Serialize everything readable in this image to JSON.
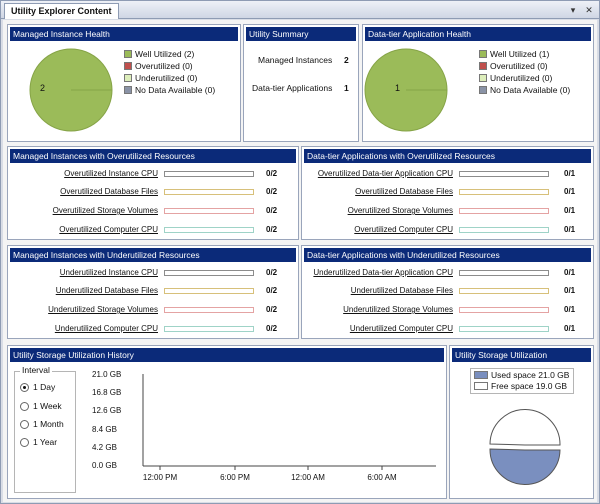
{
  "tab": {
    "title": "Utility Explorer Content",
    "dropdown_icon": "▾",
    "close_icon": "✕"
  },
  "managed_instance_health": {
    "title": "Managed Instance Health",
    "pie_value": "2",
    "legend": [
      {
        "label": "Well Utilized (2)",
        "color": "#9bbb59"
      },
      {
        "label": "Overutilized (0)",
        "color": "#c0504d"
      },
      {
        "label": "Underutilized (0)",
        "color": "#ddeebb"
      },
      {
        "label": "No Data Available (0)",
        "color": "#8a93a6"
      }
    ]
  },
  "utility_summary": {
    "title": "Utility Summary",
    "rows": [
      {
        "label": "Managed Instances",
        "value": "2"
      },
      {
        "label": "Data-tier Applications",
        "value": "1"
      }
    ]
  },
  "dac_health": {
    "title": "Data-tier Application Health",
    "pie_value": "1",
    "legend": [
      {
        "label": "Well Utilized (1)",
        "color": "#9bbb59"
      },
      {
        "label": "Overutilized (0)",
        "color": "#c0504d"
      },
      {
        "label": "Underutilized (0)",
        "color": "#ddeebb"
      },
      {
        "label": "No Data Available (0)",
        "color": "#8a93a6"
      }
    ]
  },
  "mi_over": {
    "title": "Managed Instances with Overutilized Resources",
    "rows": [
      {
        "label": "Overutilized Instance CPU",
        "value": "0/2",
        "color": "#8c8c8c"
      },
      {
        "label": "Overutilized Database Files",
        "value": "0/2",
        "color": "#d7c07a"
      },
      {
        "label": "Overutilized Storage Volumes",
        "value": "0/2",
        "color": "#e4a3a3"
      },
      {
        "label": "Overutilized Computer CPU",
        "value": "0/2",
        "color": "#9fd3c7"
      }
    ]
  },
  "dac_over": {
    "title": "Data-tier Applications with Overutilized Resources",
    "rows": [
      {
        "label": "Overutilized Data-tier Application CPU",
        "value": "0/1",
        "color": "#8c8c8c"
      },
      {
        "label": "Overutilized Database Files",
        "value": "0/1",
        "color": "#d7c07a"
      },
      {
        "label": "Overutilized Storage Volumes",
        "value": "0/1",
        "color": "#e4a3a3"
      },
      {
        "label": "Overutilized Computer CPU",
        "value": "0/1",
        "color": "#9fd3c7"
      }
    ]
  },
  "mi_under": {
    "title": "Managed Instances with Underutilized Resources",
    "rows": [
      {
        "label": "Underutilized Instance CPU",
        "value": "0/2",
        "color": "#8c8c8c"
      },
      {
        "label": "Underutilized Database Files",
        "value": "0/2",
        "color": "#d7c07a"
      },
      {
        "label": "Underutilized Storage Volumes",
        "value": "0/2",
        "color": "#e4a3a3"
      },
      {
        "label": "Underutilized Computer CPU",
        "value": "0/2",
        "color": "#9fd3c7"
      }
    ]
  },
  "dac_under": {
    "title": "Data-tier Applications with Underutilized Resources",
    "rows": [
      {
        "label": "Underutilized Data-tier Application CPU",
        "value": "0/1",
        "color": "#8c8c8c"
      },
      {
        "label": "Underutilized Database Files",
        "value": "0/1",
        "color": "#d7c07a"
      },
      {
        "label": "Underutilized Storage Volumes",
        "value": "0/1",
        "color": "#e4a3a3"
      },
      {
        "label": "Underutilized Computer CPU",
        "value": "0/1",
        "color": "#9fd3c7"
      }
    ]
  },
  "storage_history": {
    "title": "Utility Storage Utilization History",
    "interval_label": "Interval",
    "options": [
      "1 Day",
      "1 Week",
      "1 Month",
      "1 Year"
    ],
    "selected": "1 Day",
    "y_ticks": [
      "21.0 GB",
      "16.8 GB",
      "12.6 GB",
      "8.4 GB",
      "4.2 GB",
      "0.0 GB"
    ],
    "x_ticks": [
      "12:00 PM",
      "6:00 PM",
      "12:00 AM",
      "6:00 AM"
    ]
  },
  "storage_util": {
    "title": "Utility Storage Utilization",
    "legend": [
      {
        "label": "Used space 21.0 GB",
        "color": "#7a8fbf"
      },
      {
        "label": "Free space 19.0 GB",
        "color": "#ffffff"
      }
    ],
    "used_gb": 21.0,
    "free_gb": 19.0
  }
}
